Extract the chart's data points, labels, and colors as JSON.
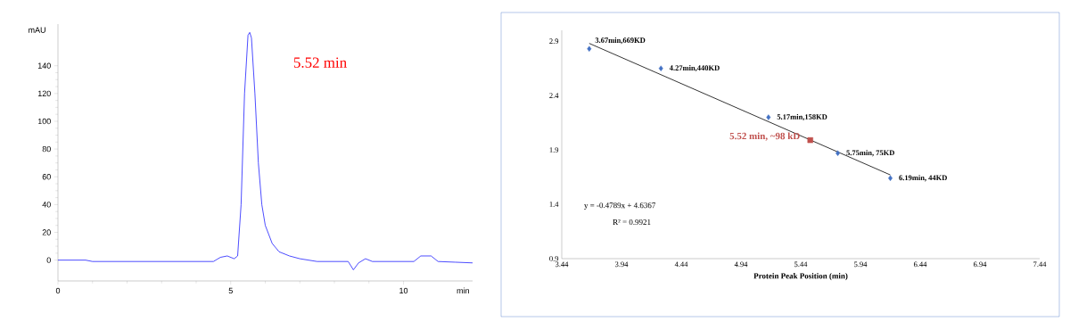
{
  "chart_data": [
    {
      "type": "line",
      "xlabel": "min",
      "ylabel": "mAU",
      "xlim": [
        0,
        12
      ],
      "ylim": [
        -15,
        170
      ],
      "xticks": [
        0,
        5,
        10
      ],
      "yticks": [
        0,
        20,
        40,
        60,
        80,
        100,
        120,
        140
      ],
      "legend": false,
      "grid": false,
      "marker": "none",
      "annotations": [
        "5.52 min"
      ],
      "series": [
        {
          "color": "#1f1fff",
          "x": [
            0,
            0.8,
            1.0,
            4.5,
            4.7,
            4.9,
            5.1,
            5.2,
            5.3,
            5.4,
            5.5,
            5.55,
            5.6,
            5.7,
            5.8,
            5.9,
            6.0,
            6.2,
            6.4,
            6.7,
            7.0,
            7.5,
            8.4,
            8.55,
            8.7,
            8.9,
            9.1,
            10.3,
            10.5,
            10.8,
            11.0,
            11.5,
            12.0
          ],
          "values": [
            0,
            0,
            -1,
            -1,
            2,
            3,
            1,
            3,
            40,
            120,
            162,
            164,
            160,
            120,
            70,
            40,
            25,
            12,
            6,
            3,
            1,
            -1,
            -1,
            -7,
            -2,
            1,
            -1,
            -1,
            3,
            3,
            -1,
            -1.5,
            -2
          ]
        }
      ]
    },
    {
      "type": "scatter",
      "xlabel": "Protein Peak Position (min)",
      "xlim": [
        3.44,
        7.44
      ],
      "ylim": [
        0.9,
        3.0
      ],
      "xticks": [
        3.44,
        3.94,
        4.44,
        4.94,
        5.44,
        5.94,
        6.44,
        6.94,
        7.44
      ],
      "yticks": [
        0.9,
        1.4,
        1.9,
        2.4,
        2.9
      ],
      "legend": false,
      "grid": false,
      "annotations": [
        {
          "text": "3.67min,669KD",
          "x": 3.67,
          "y": 2.83
        },
        {
          "text": "4.27min,440KD",
          "x": 4.27,
          "y": 2.65
        },
        {
          "text": "5.17min,158KD",
          "x": 5.17,
          "y": 2.2
        },
        {
          "text": "5.75min, 75KD",
          "x": 5.75,
          "y": 1.87
        },
        {
          "text": "6.19min, 44KD",
          "x": 6.19,
          "y": 1.64
        },
        {
          "text": "5.52 min, ~98 kD",
          "x": 5.52,
          "y": 1.99
        },
        "y = -0.4789x + 4.6367",
        "R² = 0.9921"
      ],
      "series": [
        {
          "type": "line",
          "color": "#000000",
          "marker": "none",
          "x": [
            3.67,
            6.19
          ],
          "values": [
            2.88,
            1.67
          ]
        },
        {
          "type": "scatter",
          "color": "#4472c4",
          "marker": "diamond",
          "x": [
            3.67,
            4.27,
            5.17,
            5.75,
            6.19
          ],
          "values": [
            2.83,
            2.65,
            2.2,
            1.87,
            1.64
          ]
        },
        {
          "type": "scatter",
          "color": "#c0504d",
          "marker": "square",
          "x": [
            5.52
          ],
          "values": [
            1.99
          ]
        }
      ]
    }
  ]
}
